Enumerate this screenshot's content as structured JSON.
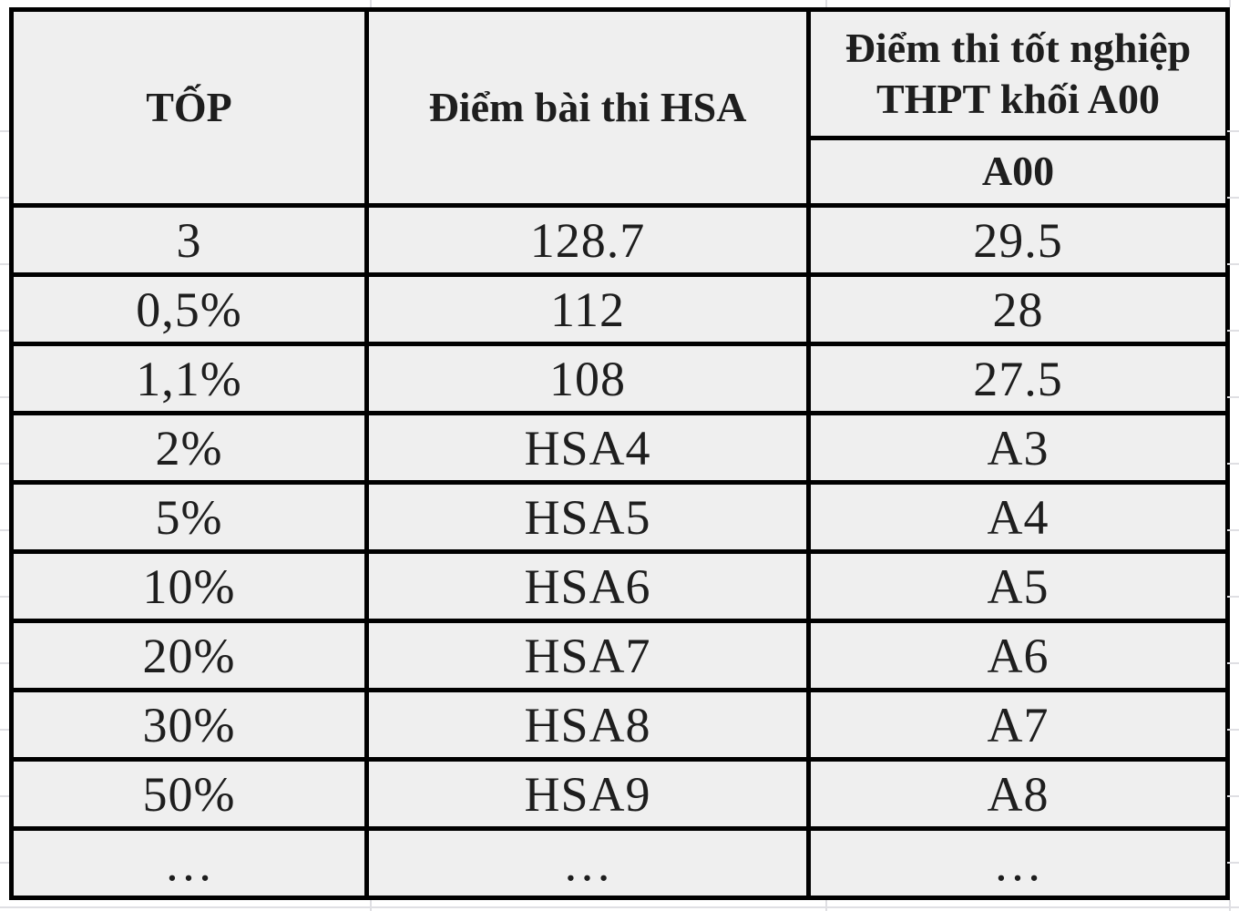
{
  "table": {
    "header": {
      "col1": "TỐP",
      "col2": "Điểm bài thi HSA",
      "col3_line1": "Điểm thi tốt nghiệp",
      "col3_line2": "THPT khối A00",
      "col3_sub": "A00"
    },
    "rows": [
      [
        "3",
        "128.7",
        "29.5"
      ],
      [
        "0,5%",
        "112",
        "28"
      ],
      [
        "1,1%",
        "108",
        "27.5"
      ],
      [
        "2%",
        "HSA4",
        "A3"
      ],
      [
        "5%",
        "HSA5",
        "A4"
      ],
      [
        "10%",
        "HSA6",
        "A5"
      ],
      [
        "20%",
        "HSA7",
        "A6"
      ],
      [
        "30%",
        "HSA8",
        "A7"
      ],
      [
        "50%",
        "HSA9",
        "A8"
      ],
      [
        "…",
        "…",
        "…"
      ]
    ]
  },
  "colors": {
    "cell_bg": "#efefef",
    "border": "#000000",
    "text": "#1e1e1e",
    "gridline": "#dfdfe3",
    "canvas_bg": "#ffffff"
  }
}
